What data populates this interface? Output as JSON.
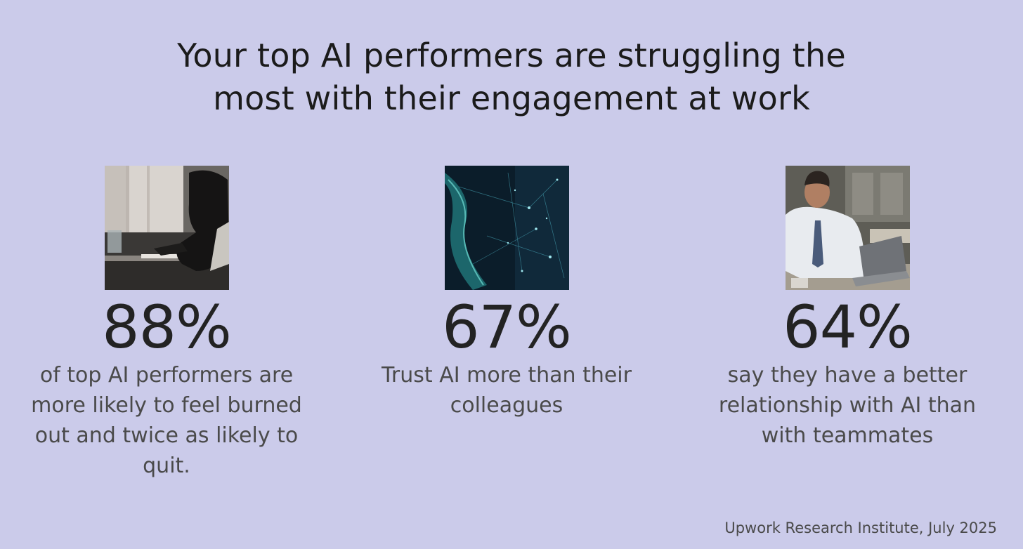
{
  "header": {
    "title_line1": "Your top AI performers are struggling the",
    "title_line2": "most with their engagement at work"
  },
  "stats": [
    {
      "value": "88%",
      "caption": "of top AI performers are more likely to feel burned out and twice as likely to quit.",
      "image": "stressed-person-at-desk-photo"
    },
    {
      "value": "67%",
      "caption": "Trust AI more than their colleagues",
      "image": "digital-network-particles-photo"
    },
    {
      "value": "64%",
      "caption": "say they have a better relationship with AI than with teammates",
      "image": "man-working-on-laptop-photo"
    }
  ],
  "footer": {
    "source": "Upwork Research Institute, July 2025"
  },
  "colors": {
    "background": "#cbcbea",
    "title_text": "#1b1b1b",
    "caption_text": "#4a4a4a"
  }
}
